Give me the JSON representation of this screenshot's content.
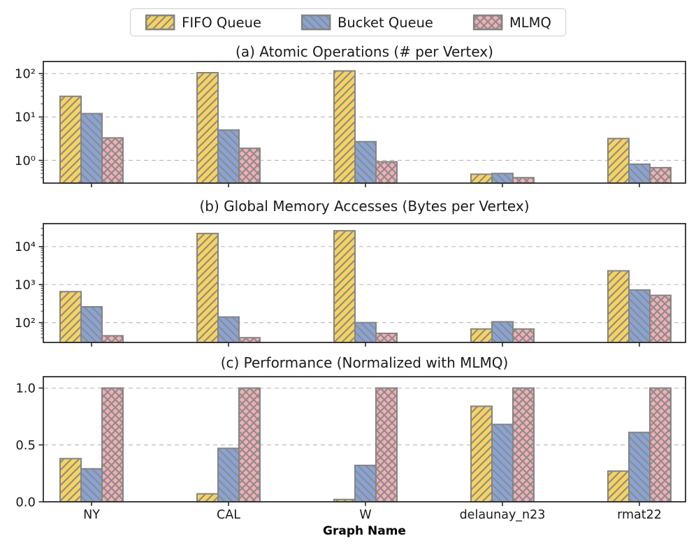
{
  "xlabel": "Graph Name",
  "categories": [
    "NY",
    "CAL",
    "W",
    "delaunay_n23",
    "rmat22"
  ],
  "legend": {
    "items": [
      {
        "label": "FIFO Queue",
        "color": "#f7d35e",
        "hatch": "/"
      },
      {
        "label": "Bucket Queue",
        "color": "#88a3d6",
        "hatch": "\\"
      },
      {
        "label": "MLMQ",
        "color": "#f4aeb3",
        "hatch": "x"
      }
    ]
  },
  "style": {
    "bar_edge": "#848484",
    "hatch_color": "#8c8c8c",
    "grid_color": "#bdbdbd",
    "axis_color": "#2b2b2b",
    "legend_border": "#cccccc",
    "text_color": "#1a1a1a"
  },
  "chart_data": [
    {
      "type": "bar",
      "title": "(a) Atomic Operations (# per Vertex)",
      "yscale": "log",
      "ylim": [
        0.3,
        190
      ],
      "yticks": [
        1,
        10,
        100
      ],
      "ytick_labels": [
        "10⁰",
        "10¹",
        "10²"
      ],
      "categories": [
        "NY",
        "CAL",
        "W",
        "delaunay_n23",
        "rmat22"
      ],
      "series": [
        {
          "name": "FIFO Queue",
          "values": [
            30,
            105,
            115,
            0.48,
            3.2
          ]
        },
        {
          "name": "Bucket Queue",
          "values": [
            12,
            5,
            2.7,
            0.5,
            0.82
          ]
        },
        {
          "name": "MLMQ",
          "values": [
            3.3,
            1.9,
            0.93,
            0.4,
            0.68
          ]
        }
      ],
      "grid": true,
      "legend_position": "top-center-figure"
    },
    {
      "type": "bar",
      "title": "(b) Global Memory Accesses (Bytes per Vertex)",
      "yscale": "log",
      "ylim": [
        30,
        40000
      ],
      "yticks": [
        100,
        1000,
        10000
      ],
      "ytick_labels": [
        "10²",
        "10³",
        "10⁴"
      ],
      "categories": [
        "NY",
        "CAL",
        "W",
        "delaunay_n23",
        "rmat22"
      ],
      "series": [
        {
          "name": "FIFO Queue",
          "values": [
            650,
            22000,
            26000,
            68,
            2300
          ]
        },
        {
          "name": "Bucket Queue",
          "values": [
            260,
            140,
            100,
            105,
            720
          ]
        },
        {
          "name": "MLMQ",
          "values": [
            45,
            40,
            52,
            68,
            520
          ]
        }
      ],
      "grid": true
    },
    {
      "type": "bar",
      "title": "(c) Performance (Normalized with MLMQ)",
      "yscale": "linear",
      "ylim": [
        0,
        1.1
      ],
      "yticks": [
        0,
        0.5,
        1.0
      ],
      "ytick_labels": [
        "0.0",
        "0.5",
        "1.0"
      ],
      "categories": [
        "NY",
        "CAL",
        "W",
        "delaunay_n23",
        "rmat22"
      ],
      "series": [
        {
          "name": "FIFO Queue",
          "values": [
            0.38,
            0.07,
            0.02,
            0.84,
            0.27
          ]
        },
        {
          "name": "Bucket Queue",
          "values": [
            0.29,
            0.47,
            0.32,
            0.68,
            0.61
          ]
        },
        {
          "name": "MLMQ",
          "values": [
            1.0,
            1.0,
            1.0,
            1.0,
            1.0
          ]
        }
      ],
      "grid": true
    }
  ]
}
